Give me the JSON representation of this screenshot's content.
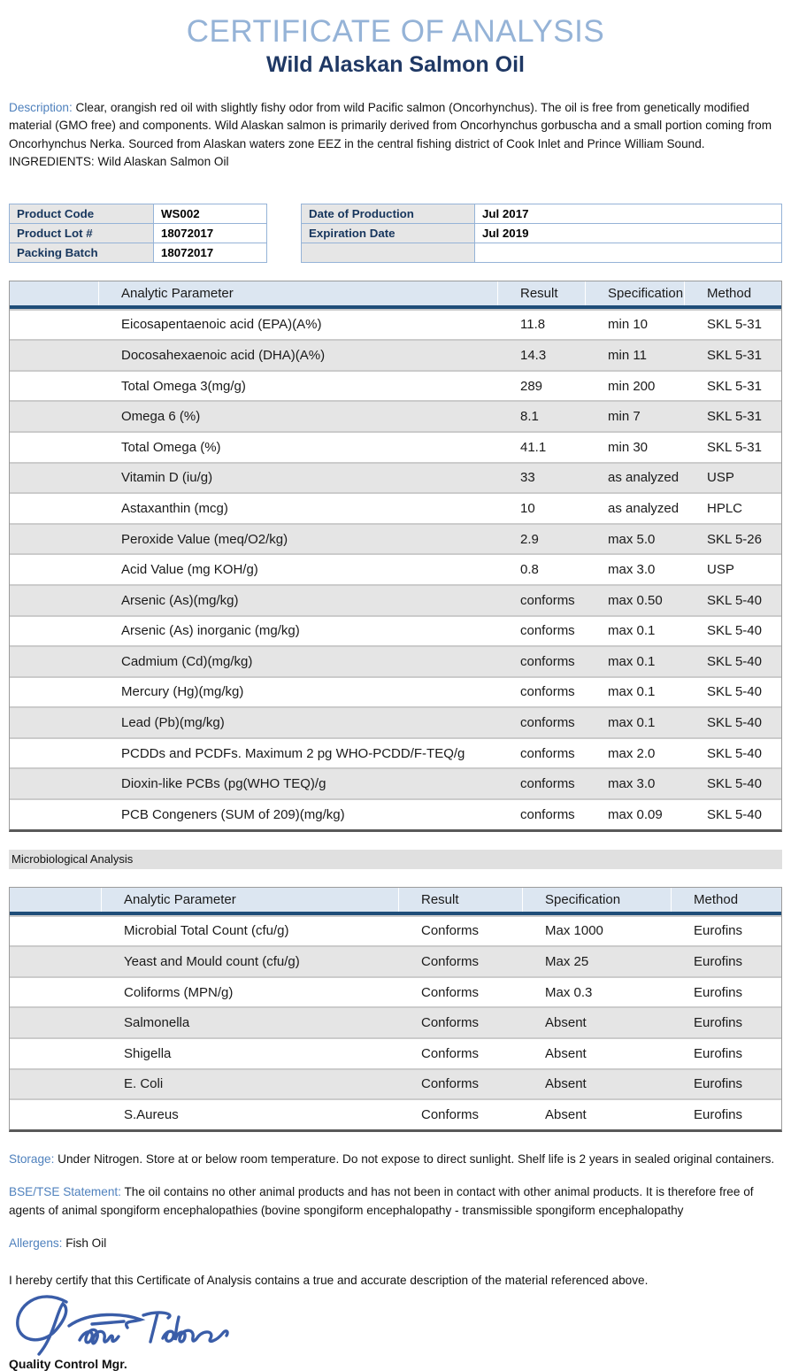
{
  "page": {
    "title": "CERTIFICATE OF ANALYSIS",
    "subtitle": "Wild Alaskan Salmon Oil"
  },
  "description": {
    "label": "Description:",
    "text": " Clear, orangish red oil with slightly fishy odor from wild Pacific salmon (Oncorhynchus). The oil is free from genetically modified material (GMO free) and components. Wild Alaskan salmon is primarily derived from Oncorhynchus gorbuscha and a small portion coming from Oncorhynchus Nerka. Sourced from Alaskan waters zone EEZ in the central fishing district of Cook Inlet and Prince William Sound. INGREDIENTS: Wild Alaskan Salmon Oil"
  },
  "product_info": {
    "left": [
      {
        "label": "Product Code",
        "value": "WS002"
      },
      {
        "label": "Product Lot #",
        "value": "18072017"
      },
      {
        "label": "Packing Batch",
        "value": "18072017"
      }
    ],
    "right": [
      {
        "label": "Date of Production",
        "value": "Jul 2017"
      },
      {
        "label": "Expiration Date",
        "value": "Jul 2019"
      },
      {
        "label": "",
        "value": ""
      }
    ]
  },
  "analysis_table": {
    "headers": [
      "",
      "Analytic Parameter",
      "Result",
      "Specification",
      "Method"
    ],
    "rows": [
      [
        "Eicosapentaenoic acid (EPA)(A%)",
        "11.8",
        "min 10",
        "SKL 5-31"
      ],
      [
        "Docosahexaenoic acid (DHA)(A%)",
        "14.3",
        "min 11",
        "SKL 5-31"
      ],
      [
        "Total Omega 3(mg/g)",
        "289",
        "min 200",
        "SKL 5-31"
      ],
      [
        "Omega 6 (%)",
        "8.1",
        "min 7",
        "SKL 5-31"
      ],
      [
        "Total Omega (%)",
        "41.1",
        "min 30",
        "SKL 5-31"
      ],
      [
        "Vitamin D (iu/g)",
        "33",
        "as analyzed",
        "USP"
      ],
      [
        "Astaxanthin (mcg)",
        "10",
        "as analyzed",
        "HPLC"
      ],
      [
        "Peroxide Value (meq/O2/kg)",
        "2.9",
        "max 5.0",
        "SKL 5-26"
      ],
      [
        "Acid Value (mg KOH/g)",
        "0.8",
        "max 3.0",
        "USP"
      ],
      [
        "Arsenic (As)(mg/kg)",
        "conforms",
        "max 0.50",
        "SKL 5-40"
      ],
      [
        "Arsenic (As) inorganic (mg/kg)",
        "conforms",
        "max 0.1",
        "SKL 5-40"
      ],
      [
        "Cadmium (Cd)(mg/kg)",
        "conforms",
        "max 0.1",
        "SKL 5-40"
      ],
      [
        "Mercury (Hg)(mg/kg)",
        "conforms",
        "max 0.1",
        "SKL 5-40"
      ],
      [
        "Lead (Pb)(mg/kg)",
        "conforms",
        "max 0.1",
        "SKL 5-40"
      ],
      [
        "PCDDs and PCDFs. Maximum 2 pg WHO-PCDD/F-TEQ/g",
        "conforms",
        "max 2.0",
        "SKL 5-40"
      ],
      [
        "Dioxin-like PCBs (pg(WHO TEQ)/g",
        "conforms",
        "max 3.0",
        "SKL 5-40"
      ],
      [
        "PCB Congeners (SUM of 209)(mg/kg)",
        "conforms",
        "max 0.09",
        "SKL 5-40"
      ]
    ]
  },
  "micro_section": {
    "label": "Microbiological Analysis"
  },
  "micro_table": {
    "headers": [
      "",
      "Analytic Parameter",
      "Result",
      "Specification",
      "Method"
    ],
    "rows": [
      [
        "Microbial Total Count (cfu/g)",
        "Conforms",
        "Max 1000",
        "Eurofins"
      ],
      [
        "Yeast and Mould count (cfu/g)",
        "Conforms",
        "Max 25",
        "Eurofins"
      ],
      [
        "Coliforms (MPN/g)",
        "Conforms",
        "Max 0.3",
        "Eurofins"
      ],
      [
        "Salmonella",
        "Conforms",
        "Absent",
        "Eurofins"
      ],
      [
        "Shigella",
        "Conforms",
        "Absent",
        "Eurofins"
      ],
      [
        "E. Coli",
        "Conforms",
        "Absent",
        "Eurofins"
      ],
      [
        "S.Aureus",
        "Conforms",
        "Absent",
        "Eurofins"
      ]
    ]
  },
  "storage": {
    "label": "Storage:",
    "text": " Under Nitrogen. Store at or below room temperature. Do not expose to direct sunlight. Shelf life is 2 years in sealed original containers."
  },
  "bse": {
    "label": "BSE/TSE Statement:",
    "text": " The oil contains no other animal products and has not been in contact with other animal products. It is therefore free of agents of animal spongiform encephalopathies (bovine spongiform encephalopathy -  transmissible spongiform encephalopathy"
  },
  "allergens": {
    "label": "Allergens:",
    "text": " Fish Oil"
  },
  "certification": {
    "text": "I hereby certify that this Certificate of Analysis contains a true and accurate description of the material referenced above."
  },
  "signature": {
    "role": "Quality Control Mgr.",
    "ink_color": "#3a5da8"
  },
  "colors": {
    "title": "#95b3d7",
    "subtitle": "#1f3864",
    "label_blue": "#4f81bd",
    "table_header_bg": "#dce6f1",
    "header_rule": "#1f4e79",
    "stripe_gray": "#e5e5e5",
    "band_gray": "#e0e0e0",
    "product_border": "#95b3d7"
  }
}
